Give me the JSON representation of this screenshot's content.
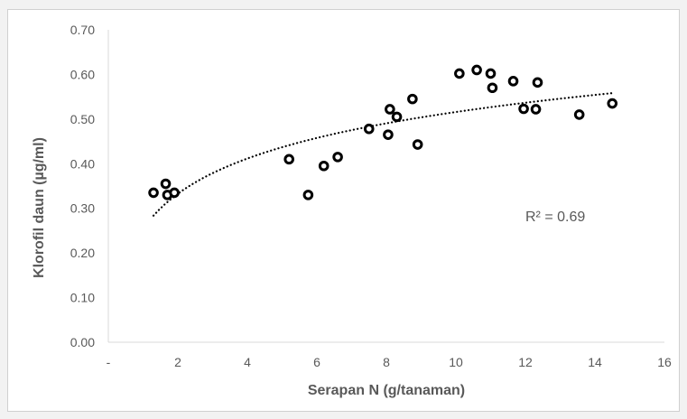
{
  "chart_data": {
    "type": "scatter",
    "xlabel": "Serapan N (g/tanaman)",
    "ylabel": "Klorofil daun (µg/ml)",
    "xlim": [
      0,
      16
    ],
    "ylim": [
      0,
      0.7
    ],
    "x_ticks": [
      {
        "v": 0,
        "label": "-"
      },
      {
        "v": 2,
        "label": "2"
      },
      {
        "v": 4,
        "label": "4"
      },
      {
        "v": 6,
        "label": "6"
      },
      {
        "v": 8,
        "label": "8"
      },
      {
        "v": 10,
        "label": "10"
      },
      {
        "v": 12,
        "label": "12"
      },
      {
        "v": 14,
        "label": "14"
      },
      {
        "v": 16,
        "label": "16"
      }
    ],
    "y_ticks": [
      {
        "v": 0,
        "label": "0.00"
      },
      {
        "v": 0.1,
        "label": "0.10"
      },
      {
        "v": 0.2,
        "label": "0.20"
      },
      {
        "v": 0.3,
        "label": "0.30"
      },
      {
        "v": 0.4,
        "label": "0.40"
      },
      {
        "v": 0.5,
        "label": "0.50"
      },
      {
        "v": 0.6,
        "label": "0.60"
      },
      {
        "v": 0.7,
        "label": "0.70"
      }
    ],
    "points": [
      {
        "x": 1.3,
        "y": 0.335
      },
      {
        "x": 1.65,
        "y": 0.355
      },
      {
        "x": 1.7,
        "y": 0.33
      },
      {
        "x": 1.9,
        "y": 0.335
      },
      {
        "x": 5.2,
        "y": 0.41
      },
      {
        "x": 5.75,
        "y": 0.33
      },
      {
        "x": 6.2,
        "y": 0.395
      },
      {
        "x": 6.6,
        "y": 0.415
      },
      {
        "x": 7.5,
        "y": 0.478
      },
      {
        "x": 8.05,
        "y": 0.465
      },
      {
        "x": 8.1,
        "y": 0.522
      },
      {
        "x": 8.3,
        "y": 0.505
      },
      {
        "x": 8.75,
        "y": 0.545
      },
      {
        "x": 8.9,
        "y": 0.443
      },
      {
        "x": 10.1,
        "y": 0.602
      },
      {
        "x": 10.6,
        "y": 0.61
      },
      {
        "x": 11.0,
        "y": 0.602
      },
      {
        "x": 11.05,
        "y": 0.57
      },
      {
        "x": 11.65,
        "y": 0.585
      },
      {
        "x": 11.95,
        "y": 0.523
      },
      {
        "x": 12.3,
        "y": 0.522
      },
      {
        "x": 12.35,
        "y": 0.582
      },
      {
        "x": 13.55,
        "y": 0.51
      },
      {
        "x": 14.5,
        "y": 0.535
      }
    ],
    "trendline": {
      "type": "logarithmic",
      "style": "dotted",
      "x_range": [
        1.3,
        14.5
      ],
      "a": 0.1138,
      "b": 0.2538
    },
    "annotation": "R² = 0.69",
    "grid": false,
    "colors": {
      "marker": "#000000",
      "axis": "#d9d9d9",
      "text": "#595959",
      "trend": "#000000"
    }
  }
}
